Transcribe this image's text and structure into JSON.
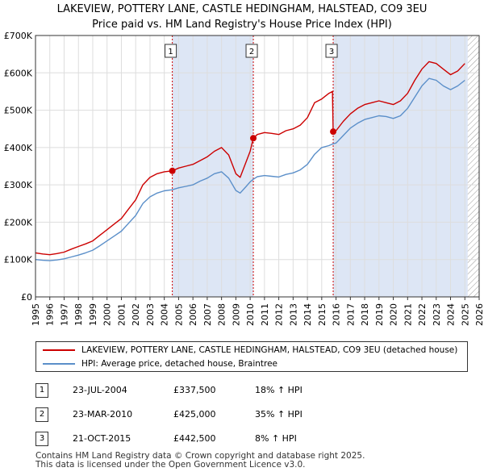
{
  "title_line1": "LAKEVIEW, POTTERY LANE, CASTLE HEDINGHAM, HALSTEAD, CO9 3EU",
  "title_line2": "Price paid vs. HM Land Registry's House Price Index (HPI)",
  "colors": {
    "property": "#cc0000",
    "hpi": "#5b8fc9",
    "shade": "#dde6f5",
    "marker_line": "#cc0000",
    "grid": "#dddddd"
  },
  "legend": {
    "property_label": "LAKEVIEW, POTTERY LANE, CASTLE HEDINGHAM, HALSTEAD, CO9 3EU (detached house)",
    "hpi_label": "HPI: Average price, detached house, Braintree"
  },
  "sales": [
    {
      "num": "1",
      "date": "23-JUL-2004",
      "price": "£337,500",
      "hpi_change": "18% ↑ HPI"
    },
    {
      "num": "2",
      "date": "23-MAR-2010",
      "price": "£425,000",
      "hpi_change": "35% ↑ HPI"
    },
    {
      "num": "3",
      "date": "21-OCT-2015",
      "price": "£442,500",
      "hpi_change": "8% ↑ HPI"
    }
  ],
  "footer": {
    "line1": "Contains HM Land Registry data © Crown copyright and database right 2025.",
    "line2": "This data is licensed under the Open Government Licence v3.0."
  },
  "chart_data": {
    "type": "line",
    "x_ticks": [
      "1995",
      "1996",
      "1997",
      "1998",
      "1999",
      "2000",
      "2001",
      "2002",
      "2003",
      "2004",
      "2005",
      "2006",
      "2007",
      "2008",
      "2009",
      "2010",
      "2011",
      "2012",
      "2013",
      "2014",
      "2015",
      "2016",
      "2017",
      "2018",
      "2019",
      "2020",
      "2021",
      "2022",
      "2023",
      "2024",
      "2025",
      "2026"
    ],
    "y_ticks": [
      "£0",
      "£100K",
      "£200K",
      "£300K",
      "£400K",
      "£500K",
      "£600K",
      "£700K"
    ],
    "xlim": [
      1995,
      2026
    ],
    "ylim": [
      0,
      700000
    ],
    "grid": true,
    "legend_position": "below chart",
    "sale_markers": [
      {
        "label": "1",
        "x": 2004.56,
        "y": 337500
      },
      {
        "label": "2",
        "x": 2010.22,
        "y": 425000
      },
      {
        "label": "3",
        "x": 2015.8,
        "y": 442500
      }
    ],
    "shaded_spans": [
      [
        2004.56,
        2010.22
      ],
      [
        2015.8,
        2025.2
      ]
    ],
    "hatched_from": 2025.2,
    "series": [
      {
        "name": "LAKEVIEW, POTTERY LANE, CASTLE HEDINGHAM, HALSTEAD, CO9 3EU (detached house)",
        "color": "#cc0000",
        "x": [
          1995,
          1995.5,
          1996,
          1996.5,
          1997,
          1997.5,
          1998,
          1998.5,
          1999,
          1999.5,
          2000,
          2000.5,
          2001,
          2001.5,
          2002,
          2002.5,
          2003,
          2003.5,
          2004,
          2004.56,
          2005,
          2005.5,
          2006,
          2006.5,
          2007,
          2007.5,
          2008,
          2008.5,
          2009,
          2009.3,
          2009.7,
          2010.0,
          2010.22,
          2010.5,
          2011,
          2011.5,
          2012,
          2012.5,
          2013,
          2013.5,
          2014,
          2014.5,
          2015,
          2015.5,
          2015.75,
          2015.8,
          2016,
          2016.5,
          2017,
          2017.5,
          2018,
          2018.5,
          2019,
          2019.5,
          2020,
          2020.5,
          2021,
          2021.5,
          2022,
          2022.5,
          2023,
          2023.5,
          2024,
          2024.5,
          2025
        ],
        "y": [
          118000,
          115000,
          113000,
          116000,
          120000,
          128000,
          135000,
          142000,
          150000,
          165000,
          180000,
          195000,
          210000,
          235000,
          260000,
          300000,
          320000,
          330000,
          335000,
          337500,
          345000,
          350000,
          355000,
          365000,
          375000,
          390000,
          400000,
          380000,
          330000,
          320000,
          360000,
          390000,
          425000,
          435000,
          440000,
          438000,
          435000,
          445000,
          450000,
          460000,
          480000,
          520000,
          530000,
          545000,
          550000,
          442500,
          445000,
          470000,
          490000,
          505000,
          515000,
          520000,
          525000,
          520000,
          515000,
          525000,
          545000,
          580000,
          610000,
          630000,
          625000,
          610000,
          595000,
          605000,
          625000
        ]
      },
      {
        "name": "HPI: Average price, detached house, Braintree",
        "color": "#5b8fc9",
        "x": [
          1995,
          1995.5,
          1996,
          1996.5,
          1997,
          1997.5,
          1998,
          1998.5,
          1999,
          1999.5,
          2000,
          2000.5,
          2001,
          2001.5,
          2002,
          2002.5,
          2003,
          2003.5,
          2004,
          2004.56,
          2005,
          2005.5,
          2006,
          2006.5,
          2007,
          2007.5,
          2008,
          2008.5,
          2009,
          2009.3,
          2009.7,
          2010.0,
          2010.22,
          2010.5,
          2011,
          2011.5,
          2012,
          2012.5,
          2013,
          2013.5,
          2014,
          2014.5,
          2015,
          2015.5,
          2015.8,
          2016,
          2016.5,
          2017,
          2017.5,
          2018,
          2018.5,
          2019,
          2019.5,
          2020,
          2020.5,
          2021,
          2021.5,
          2022,
          2022.5,
          2023,
          2023.5,
          2024,
          2024.5,
          2025
        ],
        "y": [
          100000,
          98000,
          97000,
          99000,
          102000,
          107000,
          112000,
          118000,
          125000,
          137000,
          150000,
          163000,
          176000,
          197000,
          218000,
          250000,
          268000,
          278000,
          284000,
          287000,
          292000,
          296000,
          300000,
          310000,
          318000,
          330000,
          335000,
          318000,
          285000,
          278000,
          295000,
          308000,
          315000,
          322000,
          325000,
          323000,
          321000,
          328000,
          332000,
          340000,
          355000,
          382000,
          400000,
          405000,
          410000,
          412000,
          432000,
          452000,
          465000,
          475000,
          480000,
          485000,
          483000,
          478000,
          485000,
          505000,
          535000,
          565000,
          585000,
          580000,
          565000,
          555000,
          565000,
          580000
        ]
      }
    ]
  }
}
